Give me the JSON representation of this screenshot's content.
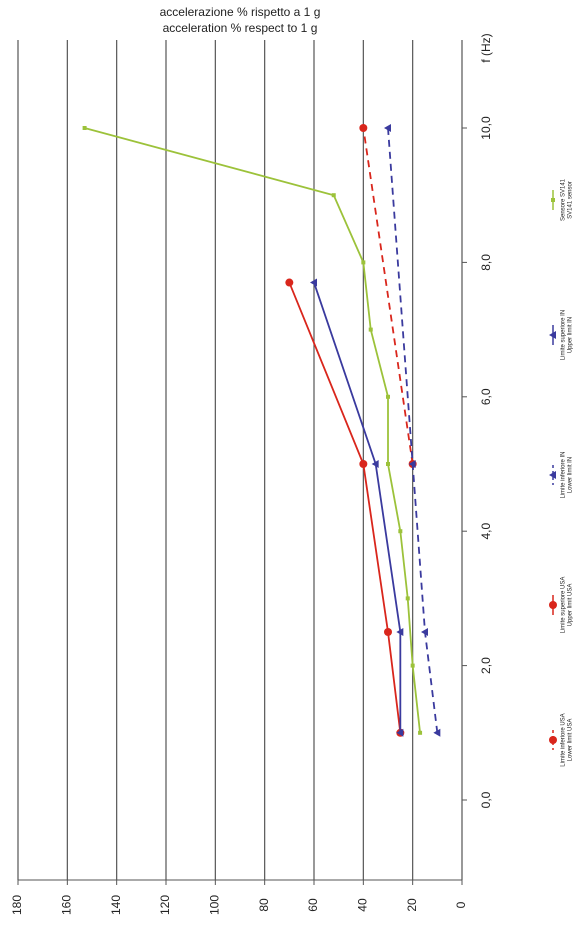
{
  "chart_data": {
    "type": "line",
    "title": [
      "accelerazione % rispetto a 1 g",
      "acceleration % respect to 1 g"
    ],
    "x_label": "f (Hz)",
    "xlim": [
      0,
      10.6
    ],
    "xticks": [
      {
        "value": 0,
        "label": "0,0"
      },
      {
        "value": 2,
        "label": "2,0"
      },
      {
        "value": 4,
        "label": "4,0"
      },
      {
        "value": 6,
        "label": "6,0"
      },
      {
        "value": 8,
        "label": "8,0"
      },
      {
        "value": 10,
        "label": "10,0"
      }
    ],
    "ylim": [
      0,
      180
    ],
    "yticks": [
      0,
      20,
      40,
      60,
      80,
      100,
      120,
      140,
      160,
      180
    ],
    "grid": true,
    "series": [
      {
        "name": [
          "Limite inferiore USA",
          "Lower limit USA"
        ],
        "color": "#d9261c",
        "dashed": true,
        "marker": "circle",
        "x": [
          5,
          10
        ],
        "values": [
          20,
          40
        ]
      },
      {
        "name": [
          "Limite superiore USA",
          "Upper limit USA"
        ],
        "color": "#d9261c",
        "dashed": false,
        "marker": "circle",
        "x": [
          1,
          2.5,
          5,
          7.7
        ],
        "values": [
          25,
          30,
          40,
          70
        ]
      },
      {
        "name": [
          "Limite inferiore IN",
          "Lower limit IN"
        ],
        "color": "#3a3a9e",
        "dashed": true,
        "marker": "triangle",
        "x": [
          1,
          2.5,
          5,
          10
        ],
        "values": [
          10,
          15,
          20,
          30
        ]
      },
      {
        "name": [
          "Limite superiore IN",
          "Upper limit IN"
        ],
        "color": "#3a3a9e",
        "dashed": false,
        "marker": "triangle",
        "x": [
          1,
          2.5,
          5,
          7.7
        ],
        "values": [
          25,
          25,
          35,
          60
        ]
      },
      {
        "name": [
          "Sensore SV141",
          "SV141 sensor"
        ],
        "color": "#9cc23a",
        "dashed": false,
        "marker": "square",
        "x": [
          1,
          2,
          3,
          4,
          5,
          6,
          7,
          8,
          9,
          10
        ],
        "values": [
          17,
          20,
          22,
          25,
          30,
          30,
          37,
          40,
          52,
          153
        ]
      }
    ]
  }
}
